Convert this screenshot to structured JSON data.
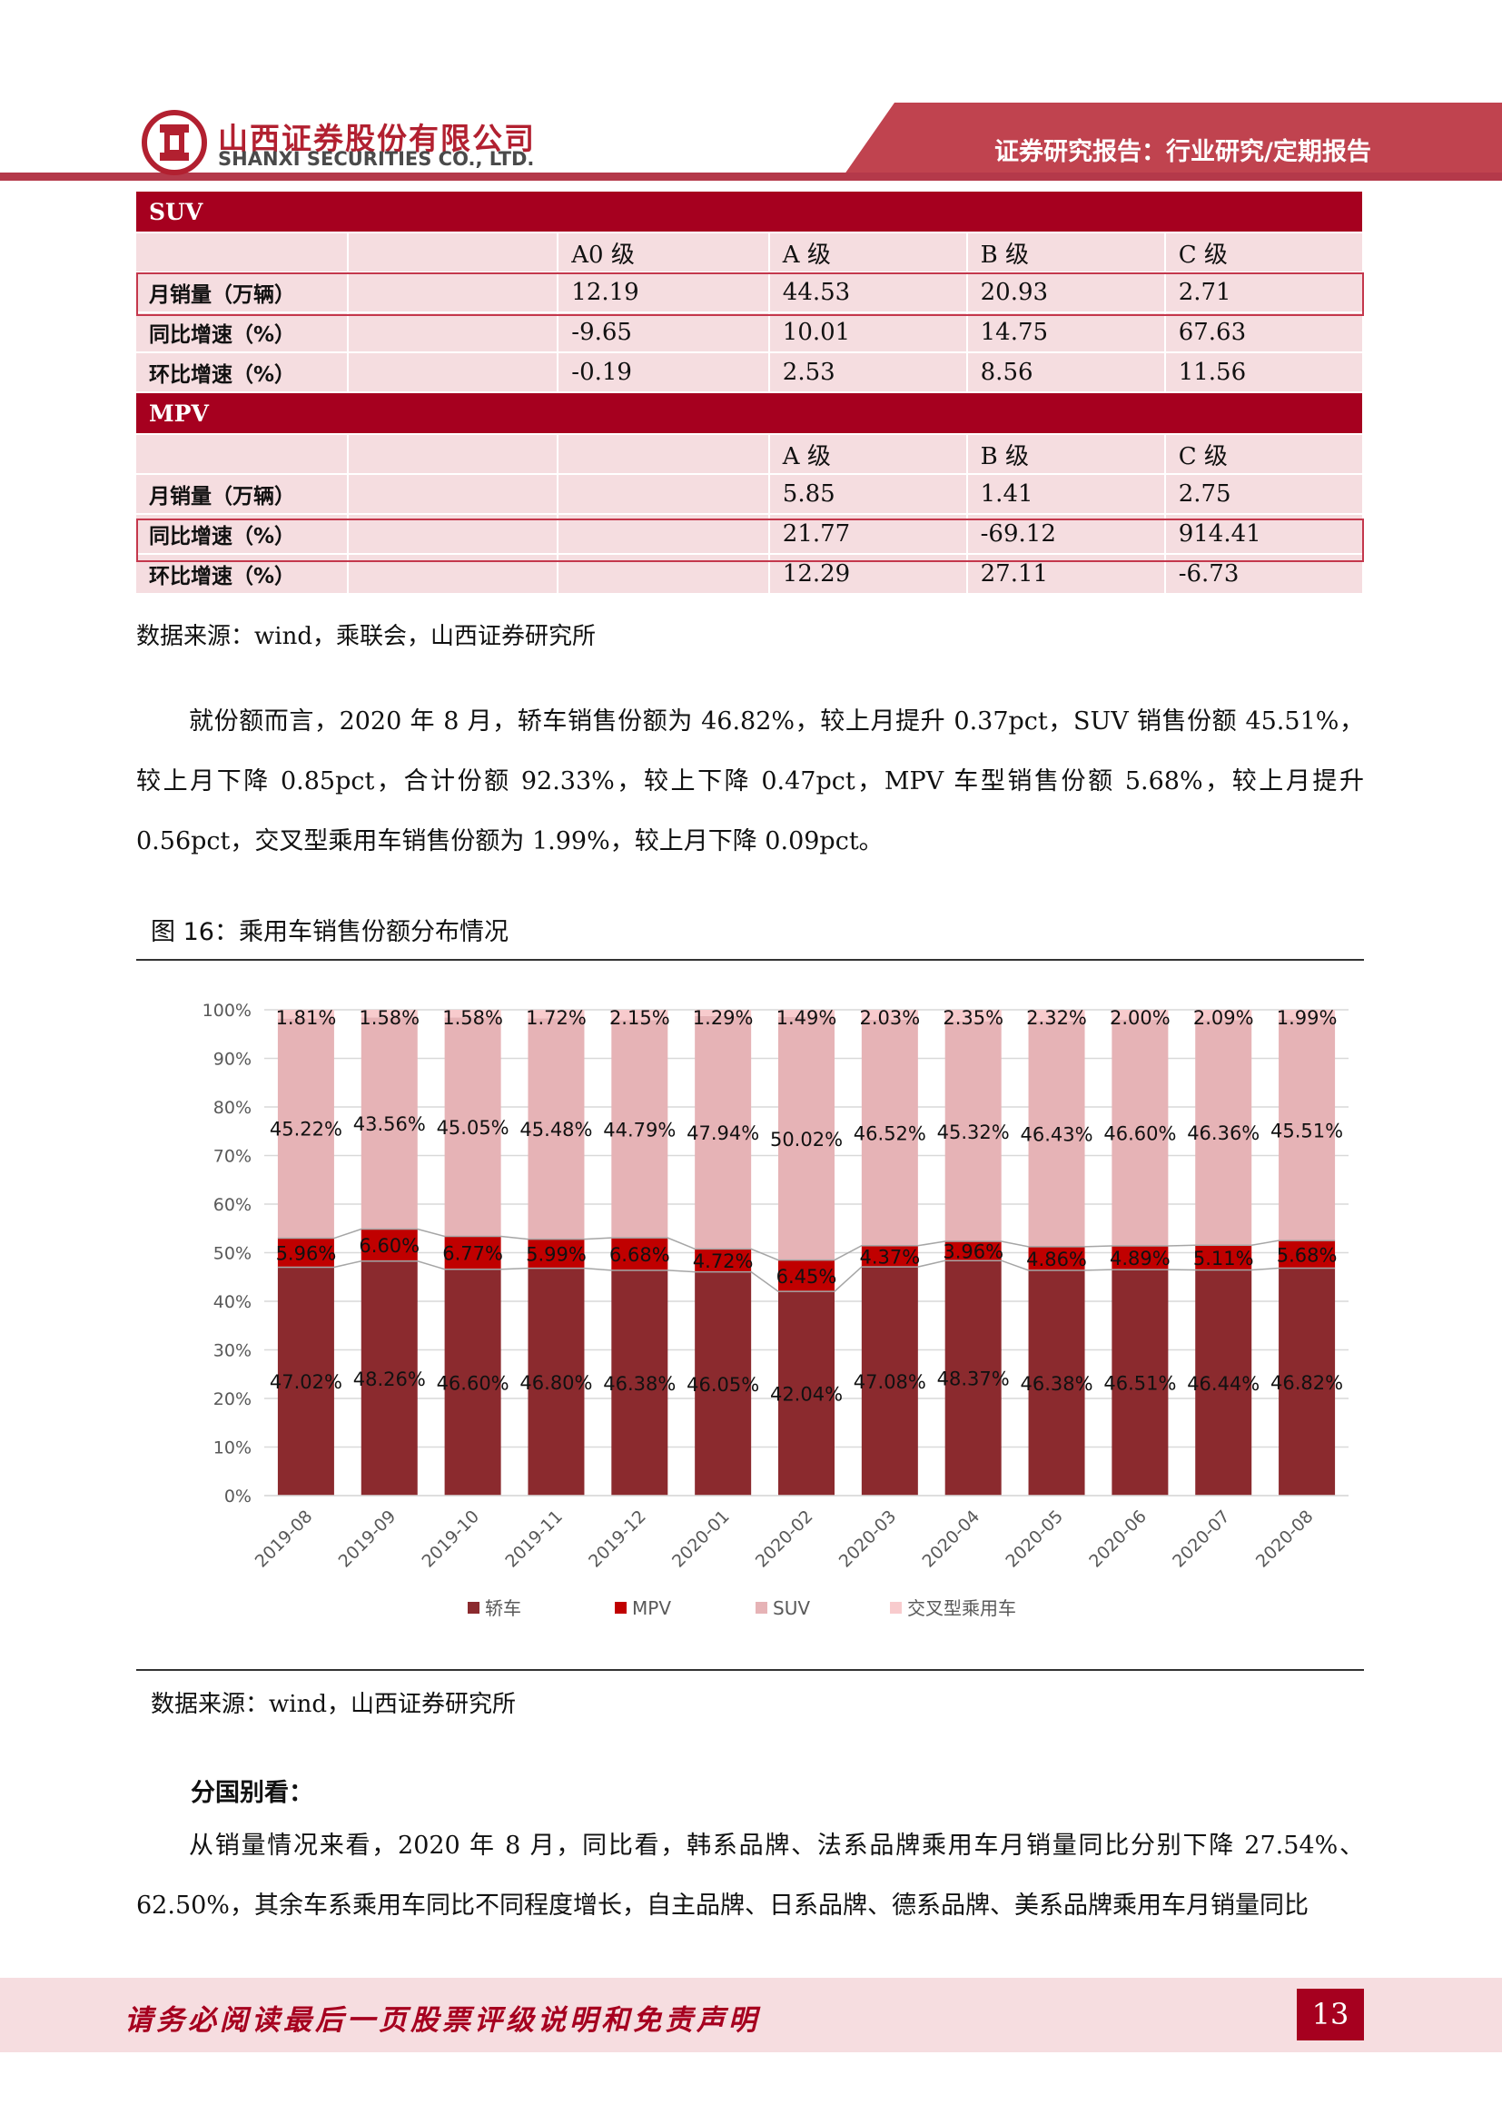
{
  "header": {
    "company_cn": "山西证券股份有限公司",
    "company_en": "SHANXI SECURITIES CO., LTD.",
    "report_type": "证券研究报告：行业研究/定期报告",
    "colors": {
      "brand": "#a6001f",
      "band": "#c0434f",
      "table_fill": "#f5dde0"
    }
  },
  "table": {
    "suv": {
      "title": "SUV",
      "columns": [
        "A0 级",
        "A 级",
        "B 级",
        "C 级"
      ],
      "rows": [
        {
          "label": "月销量（万辆）",
          "values": [
            "12.19",
            "44.53",
            "20.93",
            "2.71"
          ]
        },
        {
          "label": "同比增速（%）",
          "values": [
            "-9.65",
            "10.01",
            "14.75",
            "67.63"
          ]
        },
        {
          "label": "环比增速（%）",
          "values": [
            "-0.19",
            "2.53",
            "8.56",
            "11.56"
          ]
        }
      ]
    },
    "mpv": {
      "title": "MPV",
      "columns": [
        "A 级",
        "B 级",
        "C 级"
      ],
      "rows": [
        {
          "label": "月销量（万辆）",
          "values": [
            "5.85",
            "1.41",
            "2.75"
          ]
        },
        {
          "label": "同比增速（%）",
          "values": [
            "21.77",
            "-69.12",
            "914.41"
          ]
        },
        {
          "label": "环比增速（%）",
          "values": [
            "12.29",
            "27.11",
            "-6.73"
          ]
        }
      ]
    },
    "source": "数据来源：wind，乘联会，山西证券研究所"
  },
  "paragraph1": "就份额而言，2020 年 8 月，轿车销售份额为 46.82%，较上月提升 0.37pct，SUV 销售份额 45.51%，较上月下降 0.85pct，合计份额 92.33%，较上下降 0.47pct，MPV 车型销售份额 5.68%，较上月提升 0.56pct，交叉型乘用车销售份额为 1.99%，较上月下降 0.09pct。",
  "figure": {
    "title": "图 16：乘用车销售份额分布情况",
    "source": "数据来源：wind，山西证券研究所"
  },
  "chart_data": {
    "type": "bar",
    "stacked": true,
    "percent_stacked": true,
    "categories": [
      "2019-08",
      "2019-09",
      "2019-10",
      "2019-11",
      "2019-12",
      "2020-01",
      "2020-02",
      "2020-03",
      "2020-04",
      "2020-05",
      "2020-06",
      "2020-07",
      "2020-08"
    ],
    "series": [
      {
        "name": "轿车",
        "color": "#8b2a2e",
        "values": [
          47.02,
          48.26,
          46.6,
          46.8,
          46.38,
          46.05,
          42.04,
          47.08,
          48.37,
          46.38,
          46.51,
          46.44,
          46.82
        ],
        "labels": [
          "47.02%",
          "48.26%",
          "46.60%",
          "46.80%",
          "46.38%",
          "46.05%",
          "42.04%",
          "47.08%",
          "48.37%",
          "46.38%",
          "46.51%",
          "46.44%",
          "46.82%"
        ]
      },
      {
        "name": "MPV",
        "color": "#c00000",
        "values": [
          5.96,
          6.6,
          6.77,
          5.99,
          6.68,
          4.72,
          6.45,
          4.37,
          3.96,
          4.86,
          4.89,
          5.11,
          5.68
        ],
        "labels": [
          "5.96%",
          "6.60%",
          "6.77%",
          "5.99%",
          "6.68%",
          "4.72%",
          "6.45%",
          "4.37%",
          "3.96%",
          "4.86%",
          "4.89%",
          "5.11%",
          "5.68%"
        ]
      },
      {
        "name": "SUV",
        "color": "#e6b3b6",
        "values": [
          45.22,
          43.56,
          45.05,
          45.48,
          44.79,
          47.94,
          50.02,
          46.52,
          45.32,
          46.43,
          46.6,
          46.36,
          45.51
        ],
        "labels": [
          "45.22%",
          "43.56%",
          "45.05%",
          "45.48%",
          "44.79%",
          "47.94%",
          "50.02%",
          "46.52%",
          "45.32%",
          "46.43%",
          "46.60%",
          "46.36%",
          "45.51%"
        ]
      },
      {
        "name": "交叉型乘用车",
        "color": "#f8cbcd",
        "values": [
          1.81,
          1.58,
          1.58,
          1.72,
          2.15,
          1.29,
          1.49,
          2.03,
          2.35,
          2.32,
          2.0,
          2.09,
          1.99
        ],
        "labels": [
          "1.81%",
          "1.58%",
          "1.58%",
          "1.72%",
          "2.15%",
          "1.29%",
          "1.49%",
          "2.03%",
          "2.35%",
          "2.32%",
          "2.00%",
          "2.09%",
          "1.99%"
        ]
      }
    ],
    "yticks": [
      "0%",
      "10%",
      "20%",
      "30%",
      "40%",
      "50%",
      "60%",
      "70%",
      "80%",
      "90%",
      "100%"
    ],
    "ylim": [
      0,
      100
    ],
    "grid": true,
    "legend_position": "bottom"
  },
  "section": {
    "heading": "分国别看：",
    "paragraph": "从销量情况来看，2020 年 8 月，同比看，韩系品牌、法系品牌乘用车月销量同比分别下降 27.54%、62.50%，其余车系乘用车同比不同程度增长，自主品牌、日系品牌、德系品牌、美系品牌乘用车月销量同比"
  },
  "footer": {
    "disclaimer": "请务必阅读最后一页股票评级说明和免责声明",
    "page": "13"
  }
}
